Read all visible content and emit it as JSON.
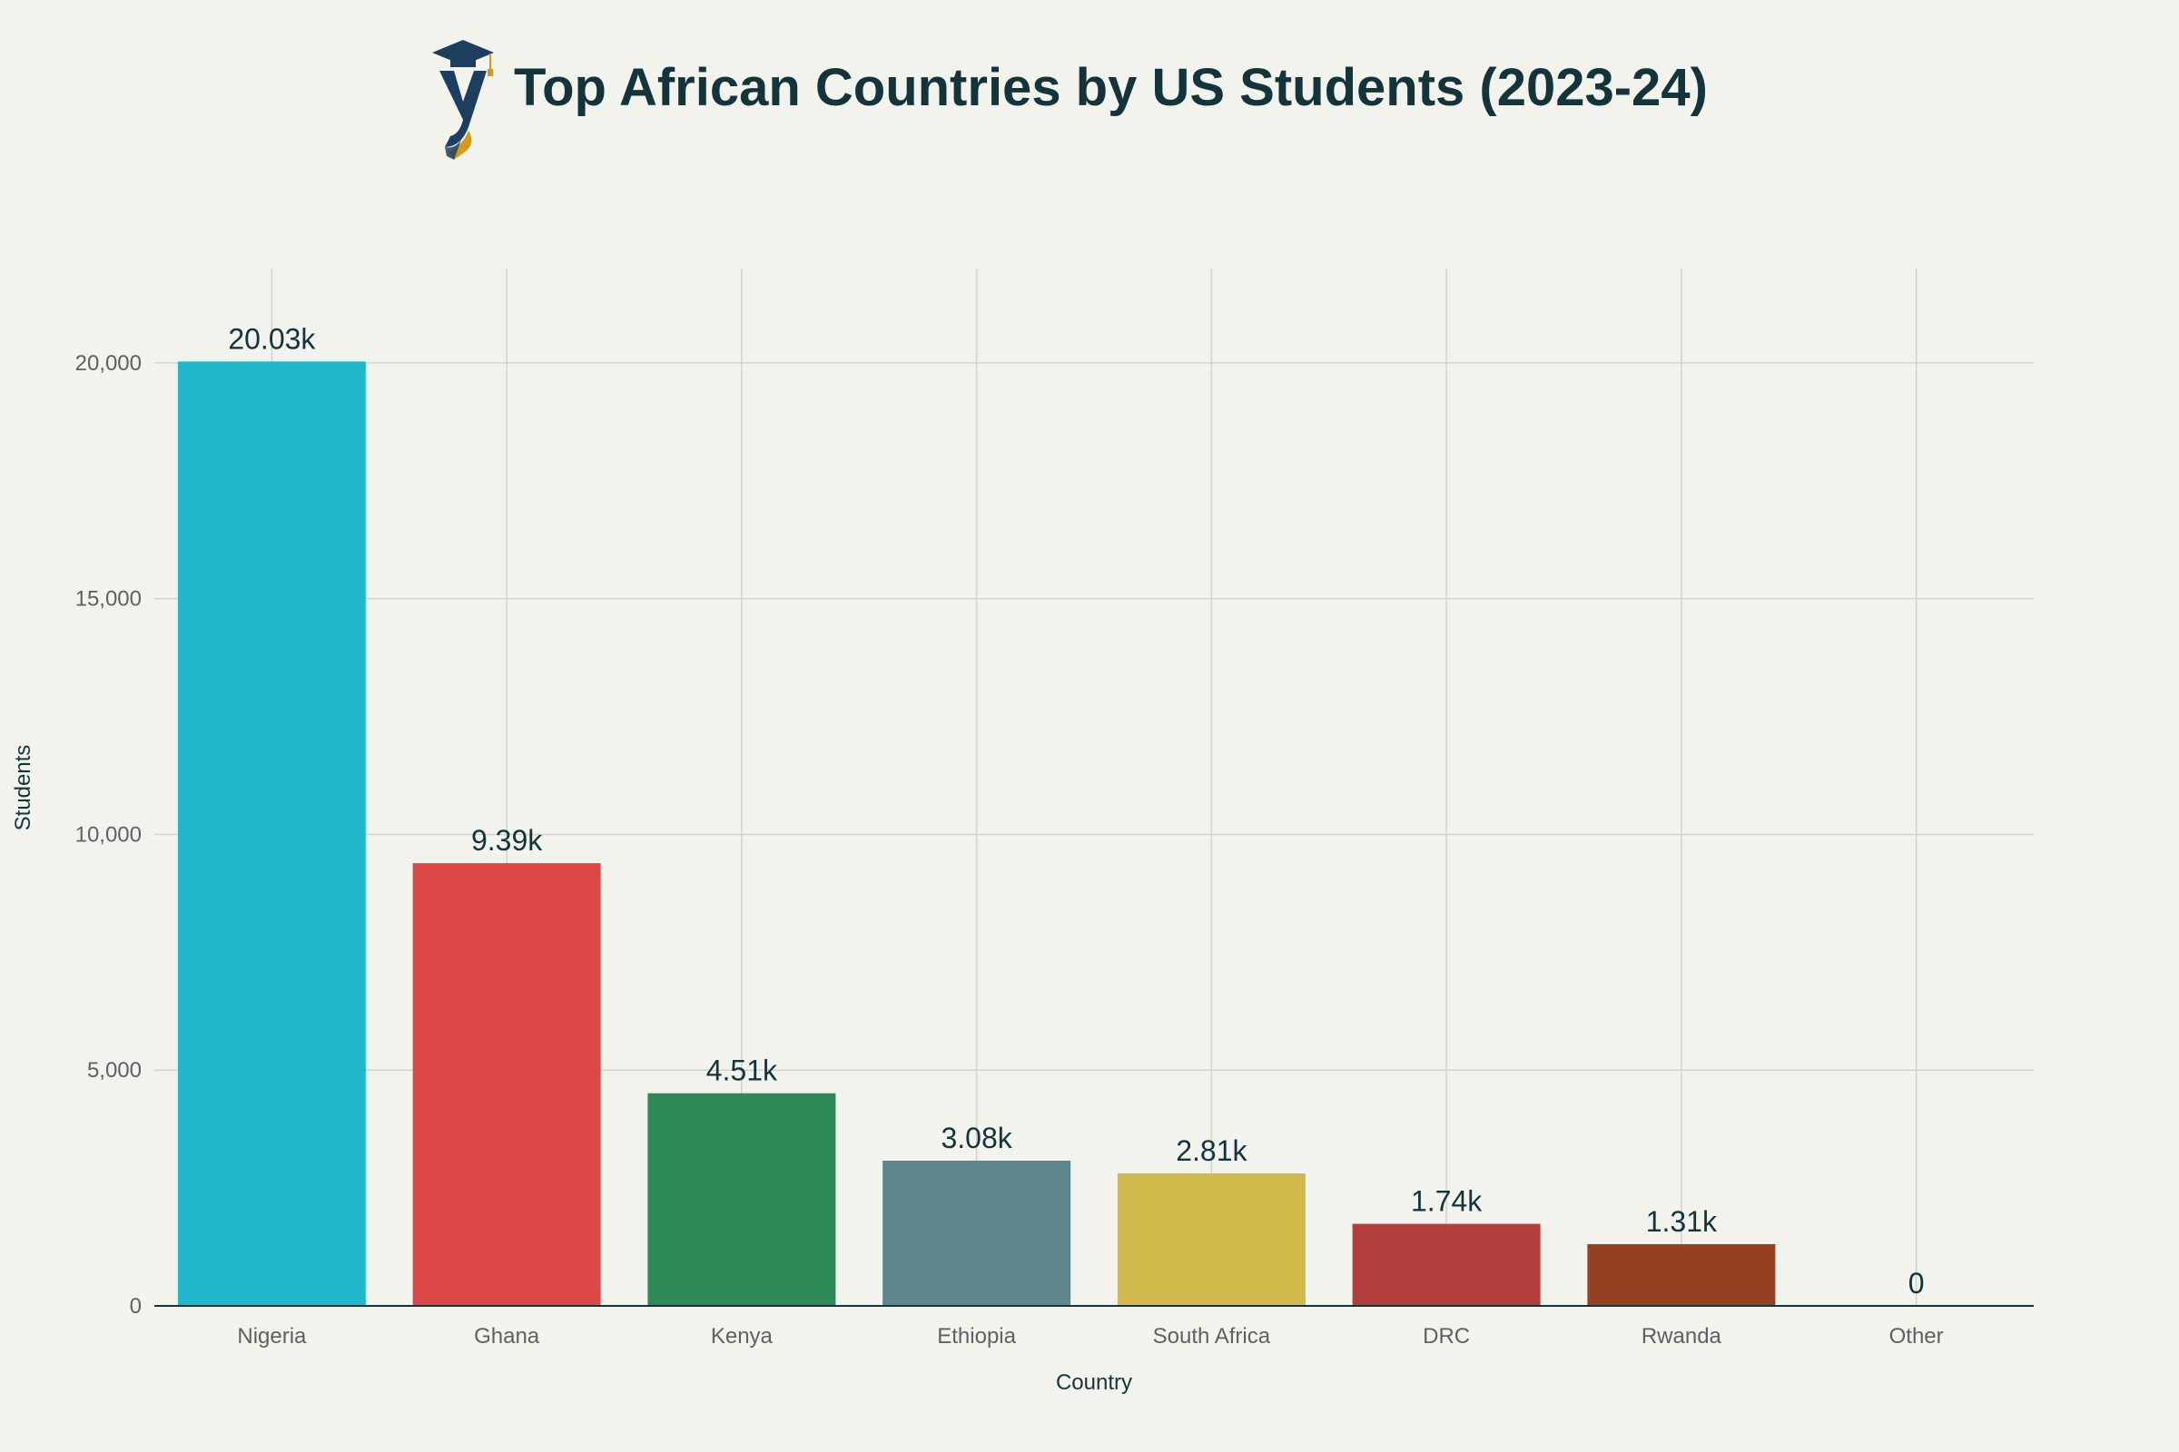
{
  "chart_data": {
    "type": "bar",
    "title": "Top African Countries by US Students (2023-24)",
    "xlabel": "Country",
    "ylabel": "Students",
    "categories": [
      "Nigeria",
      "Ghana",
      "Kenya",
      "Ethiopia",
      "South Africa",
      "DRC",
      "Rwanda",
      "Other"
    ],
    "values": [
      20030,
      9390,
      4510,
      3080,
      2810,
      1740,
      1310,
      0
    ],
    "value_labels": [
      "20.03k",
      "9.39k",
      "4.51k",
      "3.08k",
      "2.81k",
      "1.74k",
      "1.31k",
      "0"
    ],
    "colors": [
      "#21b8cd",
      "#dc4747",
      "#2e8b57",
      "#5e878d",
      "#d2b94b",
      "#b33f3d",
      "#934120",
      "#888888"
    ],
    "ylim": [
      0,
      22000
    ],
    "yticks": [
      0,
      5000,
      10000,
      15000,
      20000
    ],
    "ytick_labels": [
      "0",
      "5,000",
      "10,000",
      "15,000",
      "20,000"
    ],
    "grid": true,
    "legend": "none"
  },
  "logo": {
    "icon": "graduation-cap-logo-icon",
    "letter": "y"
  }
}
